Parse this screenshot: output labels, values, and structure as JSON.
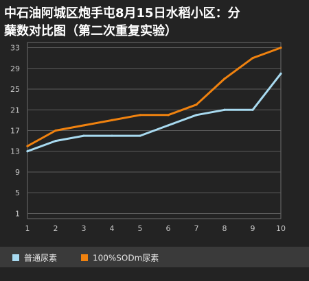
{
  "chart_data": {
    "type": "line",
    "title_line1": "中石油阿城区炮手屯8月15日水稻小区：分",
    "title_line2": "蘖数对比图（第二次重复实验）",
    "x": [
      1,
      2,
      3,
      4,
      5,
      6,
      7,
      8,
      9,
      10
    ],
    "xlim": [
      1,
      10
    ],
    "yticks": [
      1,
      5,
      9,
      13,
      17,
      21,
      25,
      29,
      33
    ],
    "ylim": [
      0,
      34
    ],
    "grid": true,
    "legend_position": "bottom-left",
    "series": [
      {
        "name": "普通尿素",
        "color": "#a8daf0",
        "values": [
          13,
          15,
          16,
          16,
          16,
          18,
          20,
          21,
          21,
          28
        ]
      },
      {
        "name": "100%SODm尿素",
        "color": "#f0820f",
        "values": [
          14,
          17,
          18,
          19,
          20,
          20,
          22,
          27,
          31,
          33
        ]
      }
    ]
  }
}
